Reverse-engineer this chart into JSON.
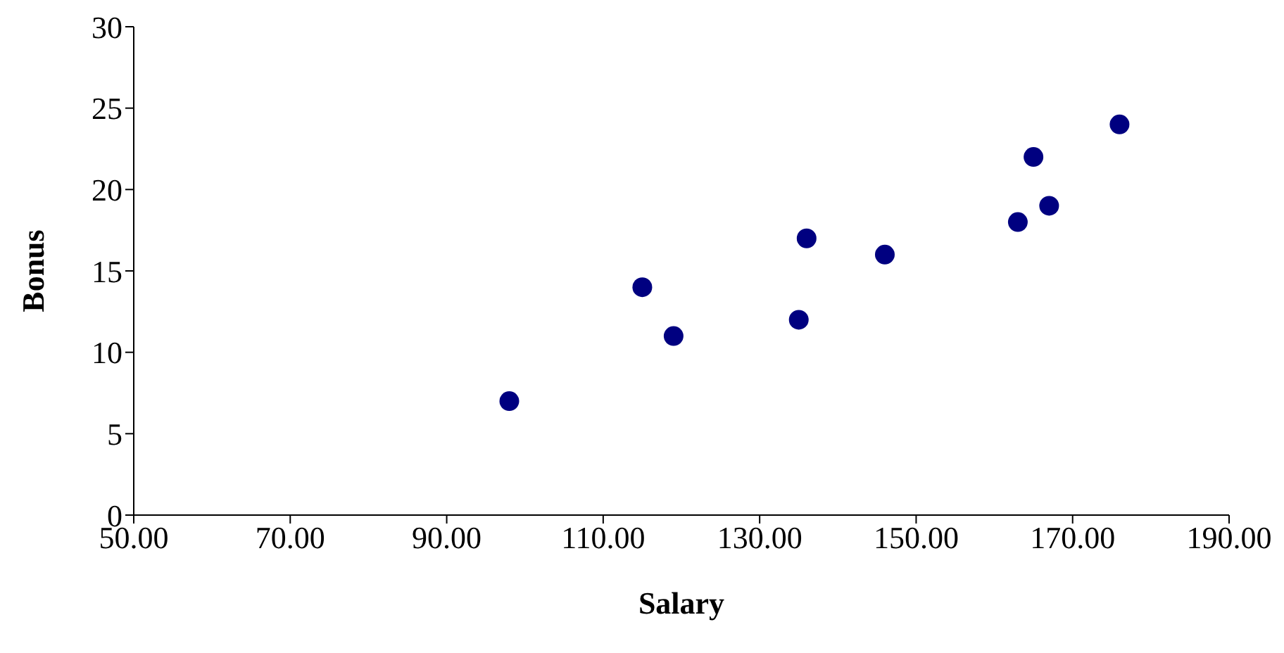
{
  "chart_data": {
    "type": "scatter",
    "xlabel": "Salary",
    "ylabel": "Bonus",
    "x": [
      98,
      115,
      119,
      135,
      136,
      146,
      163,
      165,
      167,
      176
    ],
    "values": [
      7,
      14,
      11,
      12,
      17,
      16,
      18,
      22,
      19,
      24
    ],
    "color": "#000080",
    "marker": "circle",
    "xlim": [
      50,
      190
    ],
    "ylim": [
      0,
      30
    ],
    "xticks": [
      {
        "value": 50,
        "label": "50.00"
      },
      {
        "value": 70,
        "label": "70.00"
      },
      {
        "value": 90,
        "label": "90.00"
      },
      {
        "value": 110,
        "label": "110.00"
      },
      {
        "value": 130,
        "label": "130.00"
      },
      {
        "value": 150,
        "label": "150.00"
      },
      {
        "value": 170,
        "label": "170.00"
      },
      {
        "value": 190,
        "label": "190.00"
      }
    ],
    "yticks": [
      0,
      5,
      10,
      15,
      20,
      25,
      30
    ]
  }
}
